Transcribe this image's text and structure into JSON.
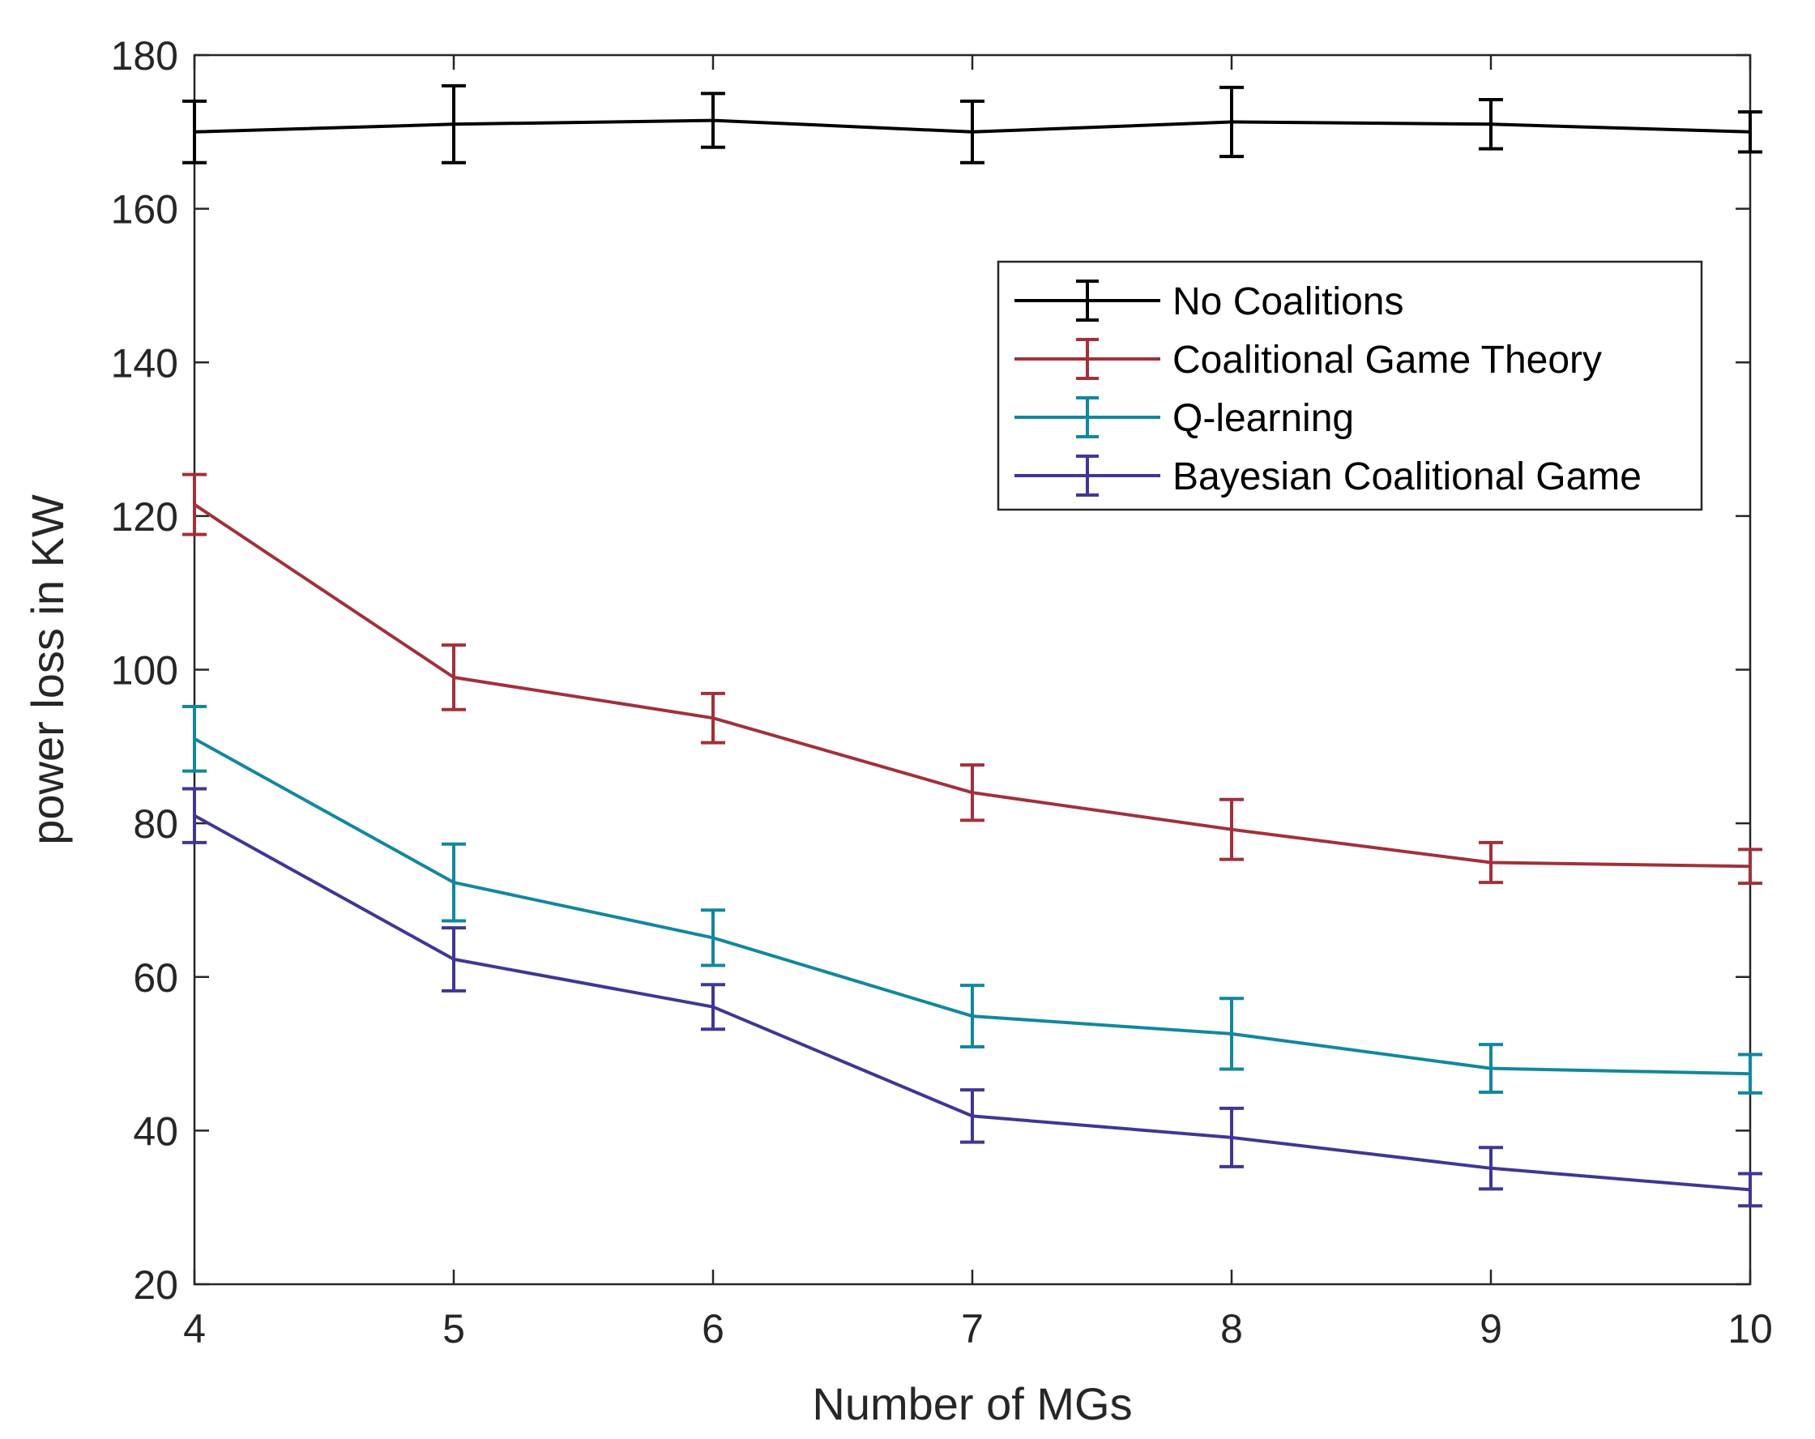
{
  "chart_data": {
    "type": "line",
    "title": "",
    "xlabel": "Number of MGs",
    "ylabel": "power loss in KW",
    "x": [
      4,
      5,
      6,
      7,
      8,
      9,
      10
    ],
    "xlim": [
      4,
      10
    ],
    "ylim": [
      20,
      180
    ],
    "xticks": [
      "4",
      "5",
      "6",
      "7",
      "8",
      "9",
      "10"
    ],
    "yticks": [
      "20",
      "40",
      "60",
      "80",
      "100",
      "120",
      "140",
      "160",
      "180"
    ],
    "grid": false,
    "legend_position": "top-right",
    "series": [
      {
        "name": "No Coalitions",
        "color": "#000000",
        "values": [
          170,
          171,
          171.5,
          170,
          171.3,
          171,
          170
        ],
        "errors": [
          4,
          5,
          3.5,
          4,
          4.5,
          3.2,
          2.6
        ]
      },
      {
        "name": "Coalitional Game Theory",
        "color": "#A2303A",
        "values": [
          121.5,
          99,
          93.7,
          84,
          79.2,
          74.9,
          74.4
        ],
        "errors": [
          3.9,
          4.2,
          3.2,
          3.6,
          3.9,
          2.6,
          2.2
        ]
      },
      {
        "name": "Q-learning",
        "color": "#1287A0",
        "values": [
          91,
          72.3,
          65.1,
          54.9,
          52.6,
          48.1,
          47.4
        ],
        "errors": [
          4.2,
          5.0,
          3.6,
          4.0,
          4.6,
          3.1,
          2.5
        ]
      },
      {
        "name": "Bayesian Coalitional Game",
        "color": "#3E3795",
        "values": [
          81,
          62.3,
          56.1,
          41.9,
          39.1,
          35.1,
          32.3
        ],
        "errors": [
          3.5,
          4.1,
          2.9,
          3.4,
          3.8,
          2.7,
          2.1
        ]
      }
    ]
  }
}
